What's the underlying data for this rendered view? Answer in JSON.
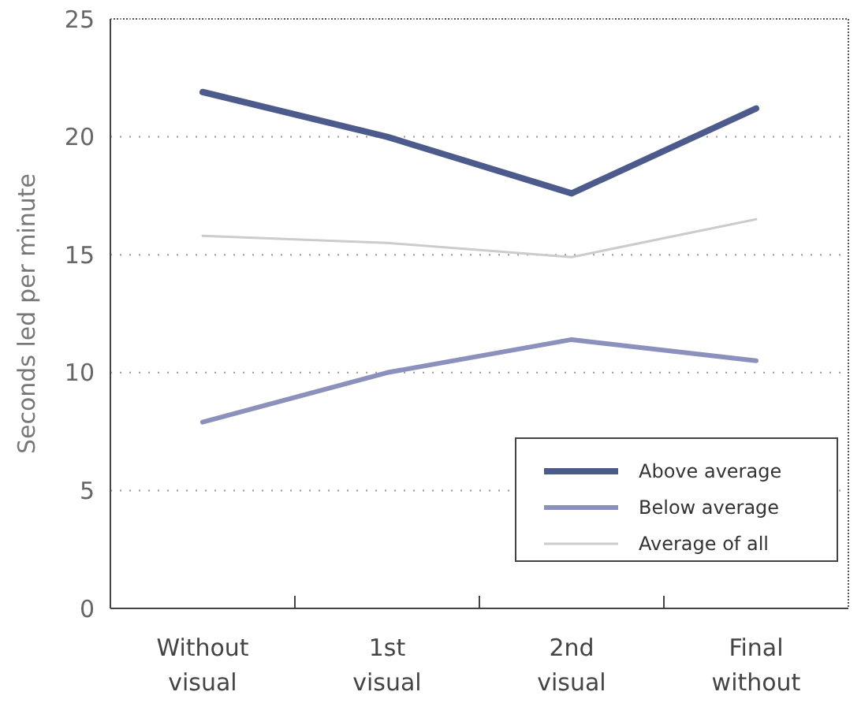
{
  "chart_data": {
    "type": "line",
    "ylabel": "Seconds led per minute",
    "categories": [
      "Without visual",
      "1st visual",
      "2nd visual",
      "Final without"
    ],
    "series": [
      {
        "name": "Above average",
        "color": "#4d5a8c",
        "values": [
          21.9,
          20.0,
          17.6,
          21.2
        ]
      },
      {
        "name": "Below average",
        "color": "#8c90bc",
        "values": [
          7.9,
          10.0,
          11.4,
          10.5
        ]
      },
      {
        "name": "Average of all",
        "color": "#cccccc",
        "values": [
          15.8,
          15.5,
          14.9,
          16.5
        ]
      }
    ],
    "ylim": [
      0,
      25
    ],
    "yticks": [
      0,
      5,
      10,
      15,
      20,
      25
    ],
    "grid": "y",
    "legend": "bottom right",
    "marker": "none",
    "line_style": "solid"
  }
}
